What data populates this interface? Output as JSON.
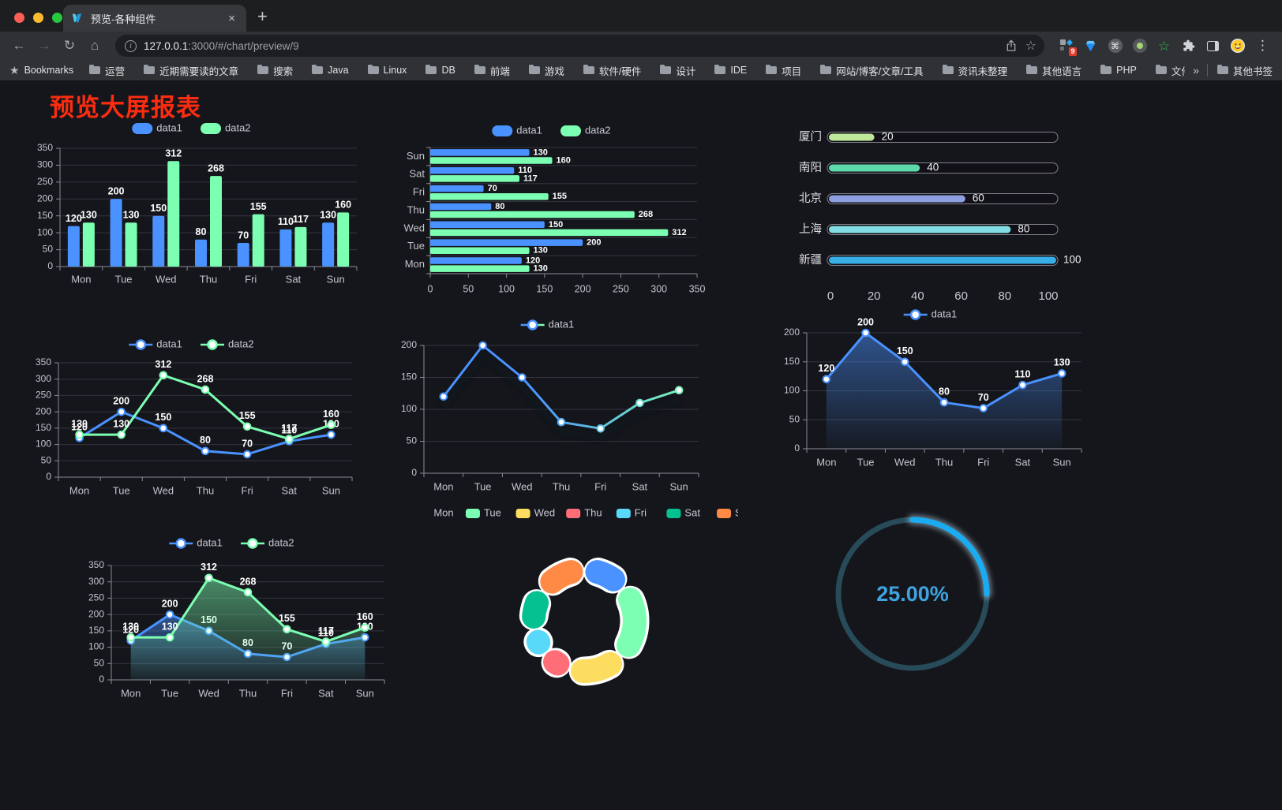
{
  "browser": {
    "tab_title": "预览-各种组件",
    "url_host": "127.0.0.1",
    "url_rest": ":3000/#/chart/preview/9",
    "bookmarks_label": "Bookmarks",
    "other_bookmarks": "其他书签",
    "bookmark_folders": [
      "运营",
      "近期需要读的文章",
      "搜索",
      "Java",
      "Linux",
      "DB",
      "前端",
      "游戏",
      "软件/硬件",
      "设计",
      "IDE",
      "项目",
      "网站/博客/文章/工具",
      "资讯未整理",
      "其他语言",
      "PHP",
      "文件服务器"
    ],
    "glyphs": {
      "close": "×",
      "plus": "+",
      "back": "←",
      "forward": "→",
      "reload": "↻",
      "home": "⌂",
      "star": "☆",
      "bstar": "★",
      "dots": "⋮",
      "chevrons": "»",
      "info": "i",
      "command": "⌘",
      "green_star": "☆"
    },
    "extensions": [
      {
        "name": "tampermonkey-icon",
        "badge": "9"
      },
      {
        "name": "gem-icon"
      },
      {
        "name": "command-icon"
      },
      {
        "name": "record-dot-icon"
      },
      {
        "name": "green-star-icon"
      },
      {
        "name": "puzzle-icon"
      },
      {
        "name": "sidebar-toggle-icon"
      },
      {
        "name": "emoji-icon"
      }
    ]
  },
  "page": {
    "title": "预览大屏报表",
    "title_color": "#fb2c10",
    "background": "#15161b"
  },
  "palette": {
    "blue": "#4992ff",
    "green": "#7cffb2",
    "yellow": "#fddd60",
    "red": "#ff6e76",
    "cyan": "#58d9f9",
    "teal": "#05c091",
    "orange": "#ff8a45"
  },
  "chart_data": [
    {
      "id": "c1",
      "type": "bar",
      "categories": [
        "Mon",
        "Tue",
        "Wed",
        "Thu",
        "Fri",
        "Sat",
        "Sun"
      ],
      "series": [
        {
          "name": "data1",
          "color": "#4992ff",
          "values": [
            120,
            200,
            150,
            80,
            70,
            110,
            130
          ]
        },
        {
          "name": "data2",
          "color": "#7cffb2",
          "values": [
            130,
            130,
            312,
            268,
            155,
            117,
            160
          ]
        }
      ],
      "ylim": [
        0,
        350
      ],
      "ystep": 50,
      "value_labels": true,
      "legend_position": "top",
      "grid": true
    },
    {
      "id": "c2",
      "type": "bar-horizontal",
      "categories": [
        "Mon",
        "Tue",
        "Wed",
        "Thu",
        "Fri",
        "Sat",
        "Sun"
      ],
      "display_order": "Sun-at-top",
      "series": [
        {
          "name": "data1",
          "color": "#4992ff",
          "values": [
            120,
            200,
            150,
            80,
            70,
            110,
            130
          ]
        },
        {
          "name": "data2",
          "color": "#7cffb2",
          "values": [
            130,
            130,
            312,
            268,
            155,
            117,
            160
          ]
        }
      ],
      "xlim": [
        0,
        350
      ],
      "xstep": 50,
      "value_labels": true,
      "legend_position": "top",
      "grid": true
    },
    {
      "id": "c3",
      "type": "progress-bars",
      "categories": [
        "厦门",
        "南阳",
        "北京",
        "上海",
        "新疆"
      ],
      "values": [
        20,
        40,
        60,
        80,
        100
      ],
      "colors": [
        "#bfe79b",
        "#5ed9ab",
        "#8d9fe0",
        "#82dde2",
        "#38aee7"
      ],
      "xlim": [
        0,
        100
      ],
      "xticks": [
        0,
        20,
        40,
        60,
        80,
        100
      ],
      "value_labels": true
    },
    {
      "id": "c4",
      "type": "line",
      "categories": [
        "Mon",
        "Tue",
        "Wed",
        "Thu",
        "Fri",
        "Sat",
        "Sun"
      ],
      "series": [
        {
          "name": "data1",
          "color": "#4992ff",
          "values": [
            120,
            200,
            150,
            80,
            70,
            110,
            130
          ]
        },
        {
          "name": "data2",
          "color": "#7cffb2",
          "values": [
            130,
            130,
            312,
            268,
            155,
            117,
            160
          ]
        }
      ],
      "ylim": [
        0,
        350
      ],
      "ystep": 50,
      "value_labels": true,
      "legend_position": "top",
      "grid": true
    },
    {
      "id": "c5",
      "type": "line",
      "categories": [
        "Mon",
        "Tue",
        "Wed",
        "Thu",
        "Fri",
        "Sat",
        "Sun"
      ],
      "series": [
        {
          "name": "data1",
          "gradient": [
            "#4992ff",
            "#7cffb2"
          ],
          "values": [
            120,
            200,
            150,
            80,
            70,
            110,
            130
          ],
          "shadow": true
        }
      ],
      "ylim": [
        0,
        200
      ],
      "ystep": 50,
      "value_labels": false,
      "legend_position": "top",
      "grid": true
    },
    {
      "id": "c6",
      "type": "area",
      "categories": [
        "Mon",
        "Tue",
        "Wed",
        "Thu",
        "Fri",
        "Sat",
        "Sun"
      ],
      "series": [
        {
          "name": "data1",
          "color": "#4992ff",
          "values": [
            120,
            200,
            150,
            80,
            70,
            110,
            130
          ],
          "area": true
        }
      ],
      "ylim": [
        0,
        200
      ],
      "ystep": 50,
      "value_labels": true,
      "legend_position": "top",
      "grid": true
    },
    {
      "id": "c7",
      "type": "area",
      "categories": [
        "Mon",
        "Tue",
        "Wed",
        "Thu",
        "Fri",
        "Sat",
        "Sun"
      ],
      "series": [
        {
          "name": "data1",
          "color": "#4992ff",
          "values": [
            120,
            200,
            150,
            80,
            70,
            110,
            130
          ],
          "area": true
        },
        {
          "name": "data2",
          "color": "#7cffb2",
          "values": [
            130,
            130,
            312,
            268,
            155,
            117,
            160
          ],
          "area": true
        }
      ],
      "ylim": [
        0,
        350
      ],
      "ystep": 50,
      "value_labels": true,
      "legend_position": "top",
      "grid": true
    },
    {
      "id": "c8",
      "type": "pie",
      "shape": "donut",
      "categories": [
        "Mon",
        "Tue",
        "Wed",
        "Thu",
        "Fri",
        "Sat",
        "Sun"
      ],
      "values": [
        120,
        200,
        150,
        80,
        70,
        110,
        130
      ],
      "colors": [
        "#4992ff",
        "#7cffb2",
        "#fddd60",
        "#ff6e76",
        "#58d9f9",
        "#05c091",
        "#ff8a45"
      ],
      "legend_position": "top"
    },
    {
      "id": "c9",
      "type": "gauge",
      "value": 25,
      "label": "25.00%",
      "track_color": "#274b59",
      "arc_color": "#1aacf2",
      "text_color": "#3fa3e0"
    }
  ]
}
